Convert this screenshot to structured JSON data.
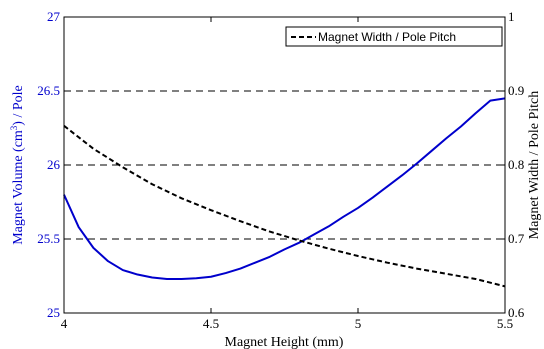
{
  "chart_data": {
    "type": "line",
    "xlabel": "Magnet Height (mm)",
    "ylabel_left_pre": "Magnet Volume (cm",
    "ylabel_left_sup": "3",
    "ylabel_left_post": ") / Pole",
    "ylabel_right": "Magnet Width / Pole Pitch",
    "xlim": [
      4,
      5.5
    ],
    "ylim_left": [
      25,
      27
    ],
    "ylim_right": [
      0.6,
      1
    ],
    "x_ticks": [
      "4",
      "4.5",
      "5",
      "5.5"
    ],
    "y_left_ticks": [
      "25",
      "25.5",
      "26",
      "26.5",
      "27"
    ],
    "y_right_ticks": [
      "0.6",
      "0.7",
      "0.8",
      "0.9",
      "1"
    ],
    "gridlines_left": [
      25.5,
      26,
      26.5
    ],
    "grid": "horizontal dashed",
    "legend_position": "top-right",
    "legend_label": "Magnet Width / Pole Pitch",
    "colors": {
      "left_axis": "#0000cc",
      "volume_line": "#0000cc",
      "ratio_line": "#000000"
    },
    "series": [
      {
        "axis": "left",
        "style": "solid",
        "x": [
          4.0,
          4.05,
          4.1,
          4.15,
          4.2,
          4.25,
          4.3,
          4.35,
          4.4,
          4.45,
          4.5,
          4.55,
          4.6,
          4.65,
          4.7,
          4.75,
          4.8,
          4.85,
          4.9,
          4.95,
          5.0,
          5.05,
          5.1,
          5.15,
          5.2,
          5.25,
          5.3,
          5.35,
          5.4,
          5.45,
          5.5
        ],
        "values": [
          25.8,
          25.58,
          25.44,
          25.35,
          25.29,
          25.26,
          25.24,
          25.23,
          25.23,
          25.235,
          25.245,
          25.27,
          25.3,
          25.34,
          25.38,
          25.43,
          25.475,
          25.53,
          25.585,
          25.65,
          25.71,
          25.78,
          25.855,
          25.93,
          26.01,
          26.095,
          26.18,
          26.26,
          26.35,
          26.435,
          26.45
        ]
      },
      {
        "axis": "right",
        "style": "dashed",
        "x": [
          4.0,
          4.1,
          4.2,
          4.3,
          4.4,
          4.5,
          4.6,
          4.7,
          4.8,
          4.9,
          5.0,
          5.1,
          5.2,
          5.3,
          5.4,
          5.5
        ],
        "values": [
          0.853,
          0.822,
          0.797,
          0.774,
          0.755,
          0.739,
          0.724,
          0.71,
          0.698,
          0.687,
          0.677,
          0.668,
          0.66,
          0.653,
          0.646,
          0.636
        ]
      }
    ]
  }
}
